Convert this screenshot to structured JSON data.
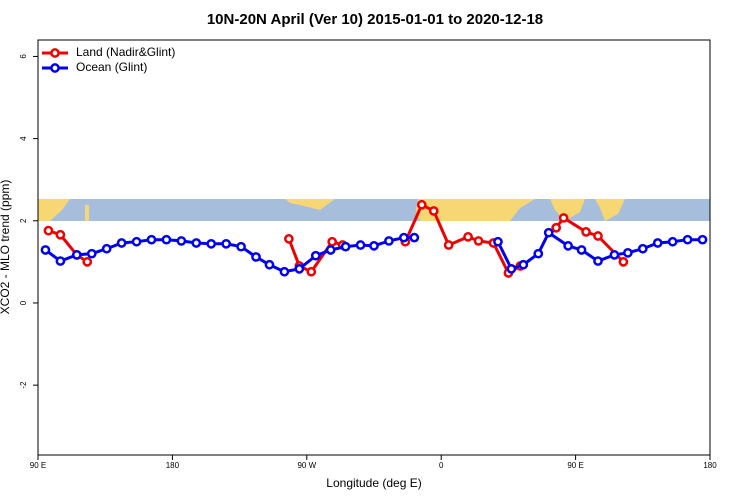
{
  "chart_data": {
    "type": "line",
    "title": "10N-20N April (Ver 10)   2015-01-01 to 2020-12-18",
    "x_label": "Longitude (deg E)",
    "y_label": "XCO2 - MLO trend (ppm)",
    "xlim": [
      90,
      540
    ],
    "xticks": [
      {
        "value": 90,
        "label": "90 E"
      },
      {
        "value": 180,
        "label": "180"
      },
      {
        "value": 270,
        "label": "90 W"
      },
      {
        "value": 360,
        "label": "0"
      },
      {
        "value": 450,
        "label": "90 E"
      },
      {
        "value": 540,
        "label": "180"
      }
    ],
    "ylim": [
      -3.7,
      6.4
    ],
    "yticks": [
      -2,
      0,
      2,
      4,
      6
    ],
    "legend": "top-left",
    "series": [
      {
        "name": "Land (Nadir&Glint)",
        "color": "#ee0000",
        "x": [
          97,
          105,
          116,
          123,
          200,
          258,
          265,
          273,
          287,
          294,
          320,
          336,
          347,
          355,
          365,
          378,
          385,
          395,
          405,
          413,
          420,
          437,
          442,
          457,
          465,
          482
        ],
        "values": [
          1.76,
          1.66,
          1.17,
          1.0,
          null,
          1.56,
          0.9,
          0.76,
          1.49,
          1.41,
          null,
          1.49,
          2.39,
          2.24,
          1.41,
          1.61,
          1.51,
          1.46,
          0.73,
          0.9,
          null,
          1.83,
          2.07,
          1.73,
          1.63,
          1.0
        ]
      },
      {
        "name": "Ocean (Glint)",
        "color": "#0000ee",
        "x": [
          95,
          105,
          116,
          126,
          136,
          146,
          156,
          166,
          176,
          186,
          196,
          206,
          216,
          226,
          236,
          245,
          255,
          265,
          276,
          286,
          296,
          306,
          315,
          325,
          335,
          342,
          380,
          398,
          407,
          415,
          425,
          432,
          445,
          454,
          465,
          476,
          485,
          495,
          505,
          515,
          525,
          535
        ],
        "values": [
          1.29,
          1.02,
          1.17,
          1.2,
          1.32,
          1.46,
          1.49,
          1.54,
          1.54,
          1.51,
          1.46,
          1.44,
          1.44,
          1.37,
          1.12,
          0.93,
          0.76,
          0.83,
          1.15,
          1.29,
          1.37,
          1.41,
          1.39,
          1.51,
          1.59,
          1.59,
          null,
          1.49,
          0.83,
          0.93,
          1.2,
          1.71,
          1.39,
          1.29,
          1.02,
          1.17,
          1.22,
          1.32,
          1.46,
          1.49,
          1.54,
          1.54
        ]
      }
    ]
  }
}
